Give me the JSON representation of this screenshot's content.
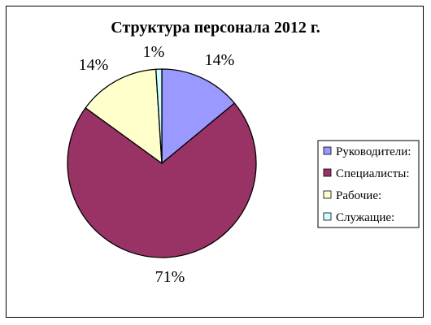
{
  "chart_data": {
    "type": "pie",
    "title": "Структура персонала 2012 г.",
    "categories": [
      "Руководители:",
      "Специалисты:",
      "Рабочие:",
      "Служащие:"
    ],
    "values": [
      14,
      71,
      14,
      1
    ],
    "value_labels": [
      "14%",
      "71%",
      "14%",
      "1%"
    ],
    "colors": [
      "#9999FF",
      "#993366",
      "#FFFFCC",
      "#CCFFFF"
    ],
    "legend_position": "right"
  }
}
